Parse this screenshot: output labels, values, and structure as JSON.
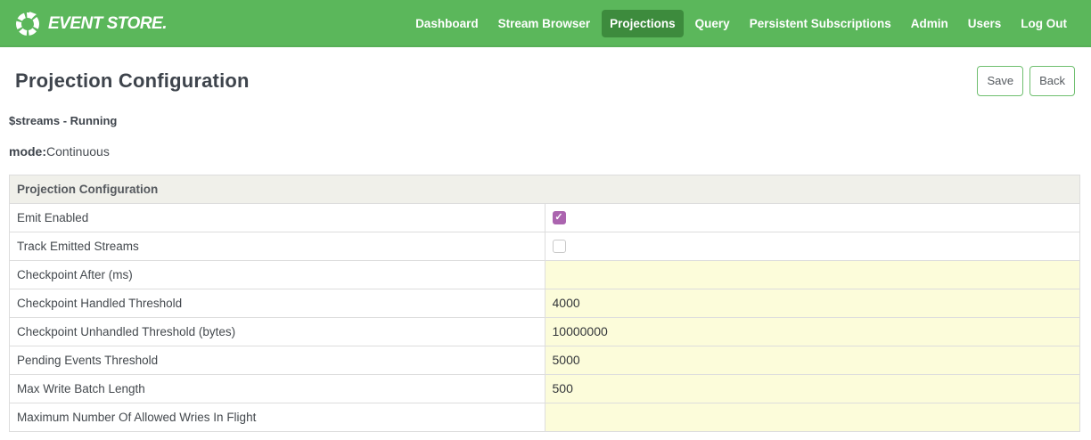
{
  "navbar": {
    "logo_text": "EVENT STORE.",
    "items": [
      {
        "label": "Dashboard",
        "active": false
      },
      {
        "label": "Stream Browser",
        "active": false
      },
      {
        "label": "Projections",
        "active": true
      },
      {
        "label": "Query",
        "active": false
      },
      {
        "label": "Persistent Subscriptions",
        "active": false
      },
      {
        "label": "Admin",
        "active": false
      },
      {
        "label": "Users",
        "active": false
      },
      {
        "label": "Log Out",
        "active": false
      }
    ]
  },
  "header": {
    "title": "Projection Configuration",
    "save_label": "Save",
    "back_label": "Back"
  },
  "projection": {
    "status_line": "$streams - Running",
    "mode_label": "mode:",
    "mode_value": "Continuous"
  },
  "table": {
    "header": "Projection Configuration",
    "rows": [
      {
        "label": "Emit Enabled",
        "type": "checkbox",
        "checked": true
      },
      {
        "label": "Track Emitted Streams",
        "type": "checkbox",
        "checked": false
      },
      {
        "label": "Checkpoint After (ms)",
        "type": "input",
        "value": ""
      },
      {
        "label": "Checkpoint Handled Threshold",
        "type": "input",
        "value": "4000"
      },
      {
        "label": "Checkpoint Unhandled Threshold (bytes)",
        "type": "input",
        "value": "10000000"
      },
      {
        "label": "Pending Events Threshold",
        "type": "input",
        "value": "5000"
      },
      {
        "label": "Max Write Batch Length",
        "type": "input",
        "value": "500"
      },
      {
        "label": "Maximum Number Of Allowed Wries In Flight",
        "type": "input",
        "value": ""
      }
    ]
  },
  "icons": {
    "logo": "circular-arrow-icon",
    "checkbox_check": "✓"
  },
  "colors": {
    "navbar_green": "#5BB75B",
    "active_nav_green": "#3D8B3D",
    "input_yellow": "#FCFCDA",
    "checkbox_purple": "#AB64AF",
    "button_border_green": "#6FBF6F",
    "table_header_bg": "#F0F0EA",
    "title_text": "#3E444C"
  }
}
